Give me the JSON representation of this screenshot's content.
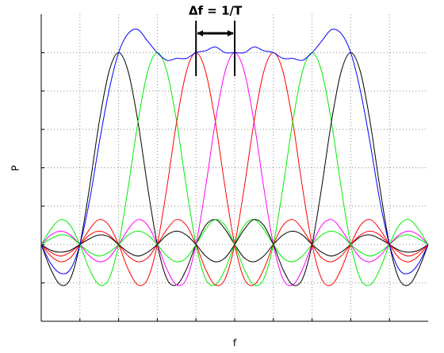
{
  "chart_data": {
    "type": "line",
    "x_label": "f",
    "y_label": "P",
    "annotation": {
      "text": "Δf = 1/T",
      "x": [
        4,
        5
      ]
    },
    "x": [
      0,
      0.25,
      0.5,
      0.75,
      1,
      1.25,
      1.5,
      1.75,
      2,
      2.25,
      2.5,
      2.75,
      3,
      3.25,
      3.5,
      3.75,
      4,
      4.25,
      4.5,
      4.75,
      5,
      5.25,
      5.5,
      5.75,
      6,
      6.25,
      6.5,
      6.75,
      7,
      7.25,
      7.5,
      7.75,
      8,
      8.25,
      8.5,
      8.75,
      9,
      9.25,
      9.5,
      9.75,
      10
    ],
    "series": [
      {
        "color": "#000000",
        "values": [
          0,
          -0.13,
          -0.21,
          -0.18,
          0,
          0.3,
          0.64,
          0.9,
          1,
          0.9,
          0.64,
          0.3,
          0,
          -0.18,
          -0.21,
          -0.13,
          0,
          0.1,
          0.13,
          0.08,
          0,
          -0.07,
          -0.09,
          -0.06,
          0,
          0.05,
          0.07,
          0.05,
          0,
          -0.04,
          -0.06,
          -0.04,
          0,
          0.04,
          0.05,
          0.03,
          0,
          -0.03,
          -0.04,
          -0.03,
          0
        ]
      },
      {
        "color": "#00ee00",
        "values": [
          0,
          0.08,
          0.13,
          0.1,
          0,
          -0.13,
          -0.21,
          -0.18,
          0,
          0.3,
          0.64,
          0.9,
          1,
          0.9,
          0.64,
          0.3,
          0,
          -0.18,
          -0.21,
          -0.13,
          0,
          0.1,
          0.13,
          0.08,
          0,
          -0.07,
          -0.09,
          -0.06,
          0,
          0.05,
          0.07,
          0.05,
          0,
          -0.04,
          -0.06,
          -0.04,
          0,
          0.04,
          0.05,
          0.03,
          0
        ]
      },
      {
        "color": "#ff0000",
        "values": [
          0,
          -0.06,
          -0.09,
          -0.07,
          0,
          0.08,
          0.13,
          0.1,
          0,
          -0.13,
          -0.21,
          -0.18,
          0,
          0.3,
          0.64,
          0.9,
          1,
          0.9,
          0.64,
          0.3,
          0,
          -0.18,
          -0.21,
          -0.13,
          0,
          0.1,
          0.13,
          0.08,
          0,
          -0.07,
          -0.09,
          -0.06,
          0,
          0.05,
          0.07,
          0.05,
          0,
          -0.04,
          -0.06,
          -0.04,
          0
        ]
      },
      {
        "color": "#ff00ff",
        "values": [
          0,
          0.05,
          0.07,
          0.05,
          0,
          -0.06,
          -0.09,
          -0.07,
          0,
          0.08,
          0.13,
          0.1,
          0,
          -0.13,
          -0.21,
          -0.18,
          0,
          0.3,
          0.64,
          0.9,
          1,
          0.9,
          0.64,
          0.3,
          0,
          -0.18,
          -0.21,
          -0.13,
          0,
          0.1,
          0.13,
          0.08,
          0,
          -0.07,
          -0.09,
          -0.06,
          0,
          0.05,
          0.07,
          0.05,
          0
        ]
      },
      {
        "color": "#ff0000",
        "values": [
          0,
          -0.04,
          -0.06,
          -0.04,
          0,
          0.05,
          0.07,
          0.05,
          0,
          -0.06,
          -0.09,
          -0.07,
          0,
          0.08,
          0.13,
          0.1,
          0,
          -0.13,
          -0.21,
          -0.18,
          0,
          0.3,
          0.64,
          0.9,
          1,
          0.9,
          0.64,
          0.3,
          0,
          -0.18,
          -0.21,
          -0.13,
          0,
          0.1,
          0.13,
          0.08,
          0,
          -0.07,
          -0.09,
          -0.06,
          0
        ]
      },
      {
        "color": "#00ee00",
        "values": [
          0,
          0.03,
          0.05,
          0.04,
          0,
          -0.04,
          -0.06,
          -0.04,
          0,
          0.05,
          0.07,
          0.05,
          0,
          -0.06,
          -0.09,
          -0.07,
          0,
          0.08,
          0.13,
          0.1,
          0,
          -0.13,
          -0.21,
          -0.18,
          0,
          0.3,
          0.64,
          0.9,
          1,
          0.9,
          0.64,
          0.3,
          0,
          -0.18,
          -0.21,
          -0.13,
          0,
          0.1,
          0.13,
          0.08,
          0
        ]
      },
      {
        "color": "#000000",
        "values": [
          0,
          -0.03,
          -0.04,
          -0.03,
          0,
          0.03,
          0.05,
          0.04,
          0,
          -0.04,
          -0.06,
          -0.04,
          0,
          0.05,
          0.07,
          0.05,
          0,
          -0.06,
          -0.09,
          -0.07,
          0,
          0.08,
          0.13,
          0.1,
          0,
          -0.13,
          -0.21,
          -0.18,
          0,
          0.3,
          0.64,
          0.9,
          1,
          0.9,
          0.64,
          0.3,
          0,
          -0.18,
          -0.21,
          -0.13,
          0
        ]
      },
      {
        "color": "#0000ff",
        "values": [
          0,
          -0.1,
          -0.15,
          -0.13,
          0,
          0.23,
          0.53,
          0.8,
          1,
          1.1,
          1.12,
          1.06,
          1,
          0.96,
          0.97,
          0.97,
          1,
          1.01,
          1.03,
          1,
          1,
          1,
          1.03,
          1.01,
          1,
          0.97,
          0.97,
          0.96,
          1,
          1.06,
          1.12,
          1.1,
          1,
          0.8,
          0.53,
          0.23,
          0,
          -0.13,
          -0.15,
          -0.1,
          0
        ]
      }
    ],
    "xlim": [
      0,
      10
    ],
    "ylim": [
      -0.4,
      1.2
    ],
    "xticks": [
      1,
      2,
      3,
      4,
      5,
      6,
      7,
      8,
      9
    ],
    "yticks": [
      -0.2,
      0,
      0.2,
      0.4,
      0.6,
      0.8,
      1
    ],
    "grid": true,
    "tick_labels": false
  }
}
